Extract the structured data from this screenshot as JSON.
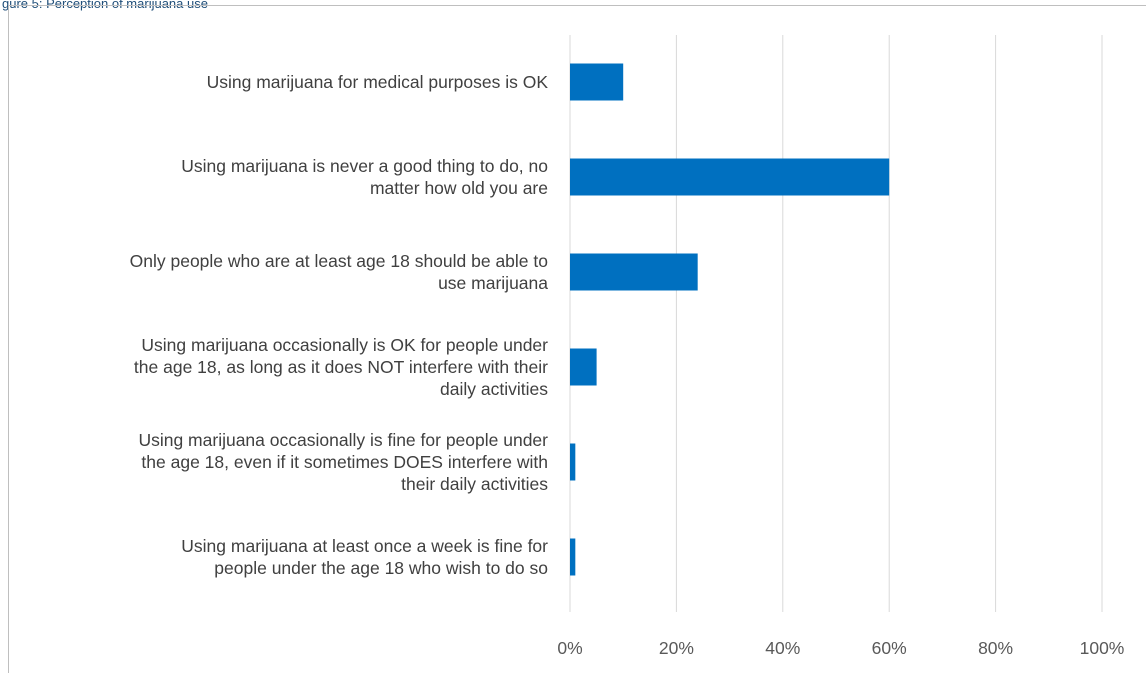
{
  "caption": "gure 5: Perception of marijuana use",
  "chart_data": {
    "type": "bar",
    "orientation": "horizontal",
    "categories": [
      "Using marijuana for medical purposes is OK",
      "Using marijuana is never a good thing to do, no matter how old you are",
      "Only people who are at least age 18 should be able to use marijuana",
      "Using marijuana occasionally is OK for people under the age 18, as long as it does NOT interfere with their daily activities",
      "Using marijuana occasionally is fine for people under the age 18, even if it sometimes DOES interfere with their daily activities",
      "Using marijuana at least once a week is fine for people under the age 18 who wish to do so"
    ],
    "category_lines": [
      [
        "Using marijuana for medical purposes is OK"
      ],
      [
        "Using marijuana is never a good thing to do, no",
        "matter how old you are"
      ],
      [
        "Only people who are at least age 18 should be able to",
        "use marijuana"
      ],
      [
        "Using marijuana occasionally is OK for people under",
        "the age 18, as long as it does NOT interfere with their",
        "daily activities"
      ],
      [
        "Using marijuana occasionally is fine for people under",
        "the age 18, even if it sometimes DOES interfere with",
        "their daily activities"
      ],
      [
        "Using marijuana at least once a week is fine for",
        "people under the age 18 who wish to do so"
      ]
    ],
    "values": [
      10,
      60,
      24,
      5,
      1,
      1
    ],
    "xlim": [
      0,
      100
    ],
    "ticks": [
      0,
      20,
      40,
      60,
      80,
      100
    ],
    "tick_labels": [
      "0%",
      "20%",
      "40%",
      "60%",
      "80%",
      "100%"
    ],
    "bar_color": "#0070c0",
    "grid_color": "#d9d9d9",
    "grid": true,
    "legend": "none"
  }
}
